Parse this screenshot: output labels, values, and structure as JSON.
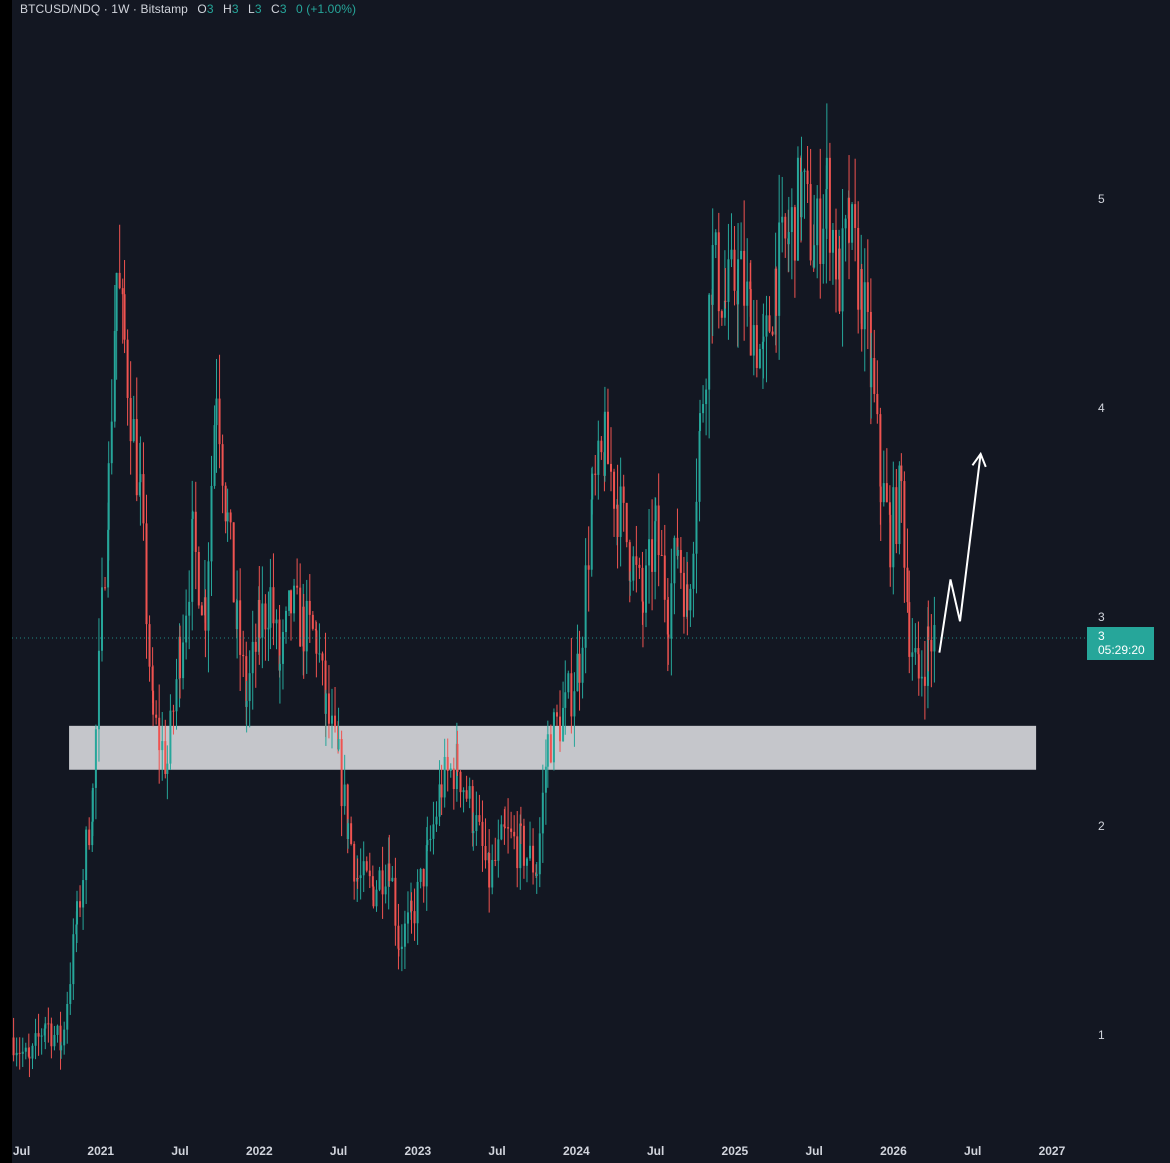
{
  "header": {
    "symbol": "BTCUSD/NDQ · 1W · Bitstamp",
    "open_label": "O",
    "open_value": "3",
    "high_label": "H",
    "high_value": "3",
    "low_label": "L",
    "low_value": "3",
    "close_label": "C",
    "close_value": "3",
    "change": "0 (+1.00%)"
  },
  "price_badge": {
    "price": "3",
    "countdown": "05:29:20"
  },
  "colors": {
    "background": "#131722",
    "up": "#26a69a",
    "down": "#ef5350",
    "zone": "#c5c6cb",
    "arrow": "#ffffff"
  },
  "chart_data": {
    "type": "candlestick",
    "y_ticks": [
      "1",
      "2",
      "3",
      "4",
      "5"
    ],
    "y_tick_values": [
      1,
      2,
      3,
      4,
      5
    ],
    "ylim": [
      0.5,
      5.95
    ],
    "x_ticks": [
      "Jul",
      "2021",
      "Jul",
      "2022",
      "Jul",
      "2023",
      "Jul",
      "2024",
      "Jul",
      "2025",
      "Jul",
      "2026",
      "Jul",
      "2027"
    ],
    "x_tick_years": [
      2020.5,
      2021.0,
      2021.5,
      2022.0,
      2022.5,
      2023.0,
      2023.5,
      2024.0,
      2024.5,
      2025.0,
      2025.5,
      2026.0,
      2026.5,
      2027.0
    ],
    "xlim": [
      2020.44,
      2027.24
    ],
    "last_price": 2.9,
    "support_zone": {
      "low": 2.27,
      "high": 2.48,
      "from": 2020.8,
      "to": 2026.9
    },
    "projection_path": [
      [
        2026.29,
        2.83
      ],
      [
        2026.36,
        3.18
      ],
      [
        2026.42,
        2.98
      ],
      [
        2026.55,
        3.78
      ]
    ],
    "series": [
      {
        "values": [
          [
            2020.45,
            0.99
          ],
          [
            2020.55,
            0.86
          ],
          [
            2020.65,
            1.07
          ],
          [
            2020.75,
            0.95
          ],
          [
            2020.85,
            1.55
          ],
          [
            2020.95,
            2.15
          ],
          [
            2021.05,
            3.65
          ],
          [
            2021.1,
            4.65
          ],
          [
            2021.15,
            4.3
          ],
          [
            2021.25,
            3.55
          ],
          [
            2021.33,
            2.5
          ],
          [
            2021.42,
            2.3
          ],
          [
            2021.5,
            2.85
          ],
          [
            2021.58,
            3.35
          ],
          [
            2021.66,
            3.05
          ],
          [
            2021.73,
            4.15
          ],
          [
            2021.8,
            3.45
          ],
          [
            2021.86,
            2.95
          ],
          [
            2021.92,
            2.6
          ],
          [
            2022.0,
            2.95
          ],
          [
            2022.07,
            3.1
          ],
          [
            2022.13,
            2.75
          ],
          [
            2022.2,
            3.05
          ],
          [
            2022.28,
            2.95
          ],
          [
            2022.36,
            2.9
          ],
          [
            2022.42,
            2.55
          ],
          [
            2022.5,
            2.3
          ],
          [
            2022.56,
            2.0
          ],
          [
            2022.62,
            1.75
          ],
          [
            2022.72,
            1.7
          ],
          [
            2022.82,
            1.85
          ],
          [
            2022.88,
            1.45
          ],
          [
            2022.96,
            1.55
          ],
          [
            2023.06,
            1.85
          ],
          [
            2023.15,
            2.2
          ],
          [
            2023.25,
            2.3
          ],
          [
            2023.35,
            2.05
          ],
          [
            2023.45,
            1.75
          ],
          [
            2023.55,
            1.95
          ],
          [
            2023.65,
            1.9
          ],
          [
            2023.75,
            1.8
          ],
          [
            2023.82,
            2.4
          ],
          [
            2023.93,
            2.55
          ],
          [
            2024.02,
            2.8
          ],
          [
            2024.1,
            3.55
          ],
          [
            2024.18,
            3.8
          ],
          [
            2024.26,
            3.55
          ],
          [
            2024.34,
            3.3
          ],
          [
            2024.42,
            3.05
          ],
          [
            2024.5,
            3.4
          ],
          [
            2024.58,
            3.05
          ],
          [
            2024.64,
            3.35
          ],
          [
            2024.7,
            3.05
          ],
          [
            2024.78,
            3.9
          ],
          [
            2024.86,
            4.7
          ],
          [
            2024.94,
            4.5
          ],
          [
            2025.02,
            4.65
          ],
          [
            2025.1,
            4.45
          ],
          [
            2025.18,
            4.2
          ],
          [
            2025.26,
            4.65
          ],
          [
            2025.34,
            4.8
          ],
          [
            2025.42,
            5.05
          ],
          [
            2025.5,
            4.75
          ],
          [
            2025.58,
            5.05
          ],
          [
            2025.66,
            4.6
          ],
          [
            2025.72,
            4.85
          ],
          [
            2025.8,
            4.55
          ],
          [
            2025.86,
            4.15
          ],
          [
            2025.92,
            3.65
          ],
          [
            2025.98,
            3.4
          ],
          [
            2026.05,
            3.6
          ],
          [
            2026.1,
            2.95
          ],
          [
            2026.16,
            2.7
          ],
          [
            2026.22,
            2.88
          ],
          [
            2026.26,
            2.9
          ]
        ]
      }
    ]
  }
}
